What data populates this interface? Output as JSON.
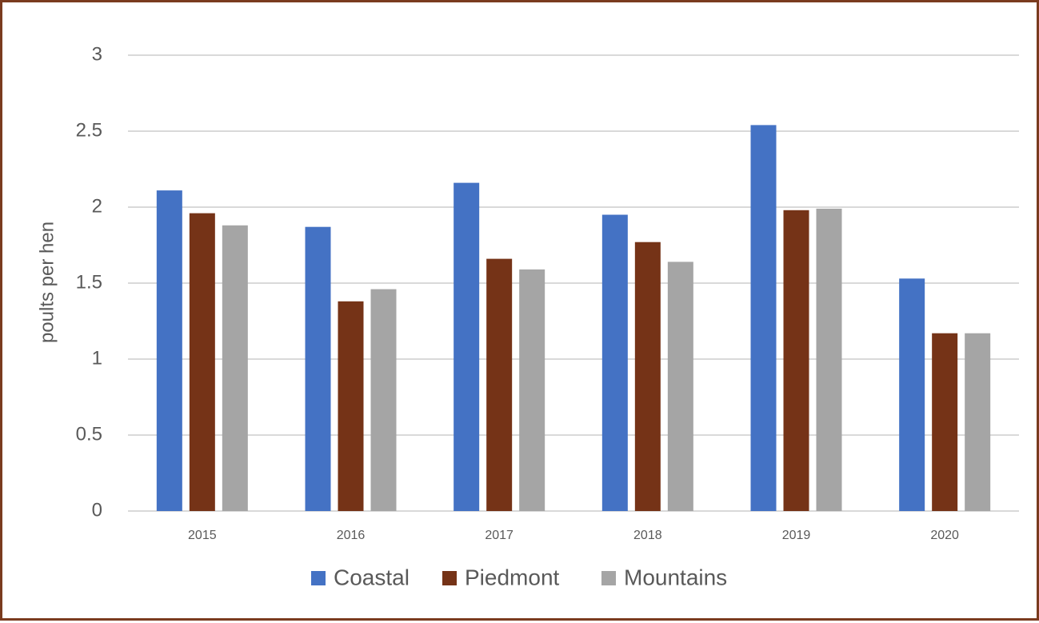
{
  "chart_data": {
    "type": "bar",
    "title": "",
    "xlabel": "",
    "ylabel": "poults per hen",
    "ylim": [
      0,
      3
    ],
    "yticks": [
      "0",
      "0.5",
      "1",
      "1.5",
      "2",
      "2.5",
      "3"
    ],
    "grid": true,
    "legend_position": "bottom",
    "categories": [
      "2015",
      "2016",
      "2017",
      "2018",
      "2019",
      "2020"
    ],
    "series": [
      {
        "name": "Coastal",
        "color": "#4472c4",
        "values": [
          2.11,
          1.87,
          2.16,
          1.95,
          2.54,
          1.53
        ]
      },
      {
        "name": "Piedmont",
        "color": "#753317",
        "values": [
          1.96,
          1.38,
          1.66,
          1.77,
          1.98,
          1.17
        ]
      },
      {
        "name": "Mountains",
        "color": "#a5a5a5",
        "values": [
          1.88,
          1.46,
          1.59,
          1.64,
          1.99,
          1.17
        ]
      }
    ]
  }
}
